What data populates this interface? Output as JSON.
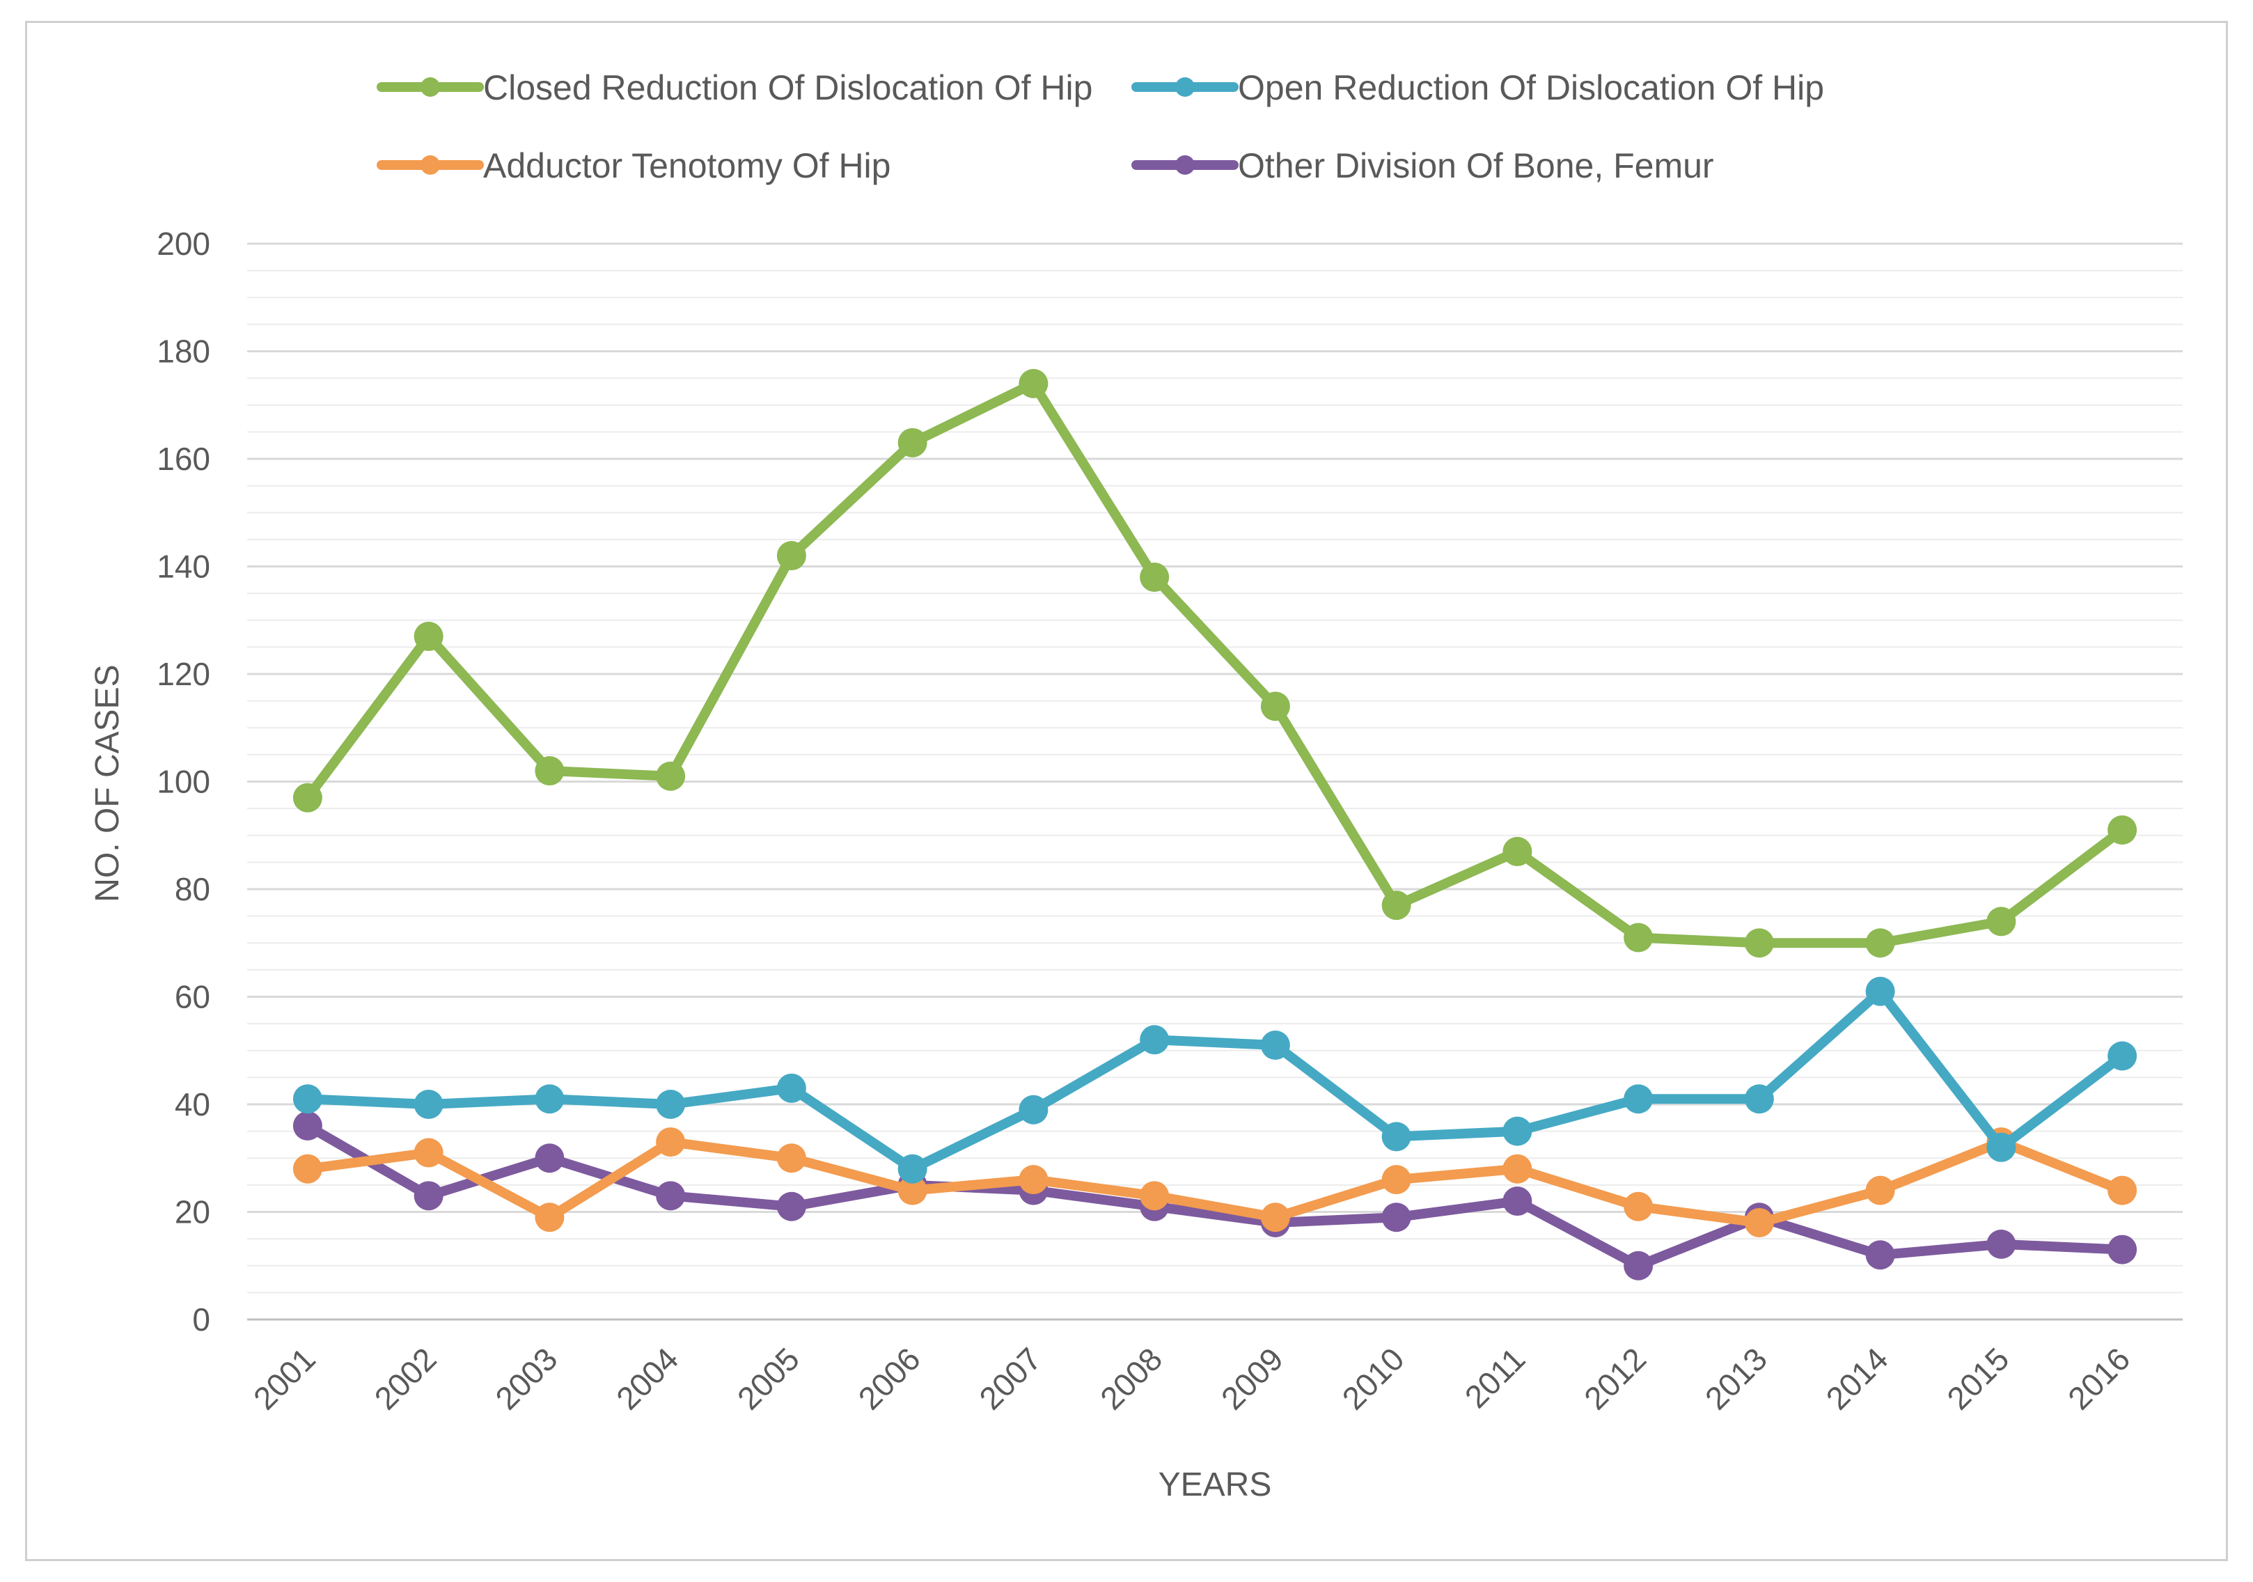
{
  "chart_data": {
    "type": "line",
    "title": "",
    "xlabel": "YEARS",
    "ylabel": "NO. OF CASES",
    "ylim": [
      0,
      200
    ],
    "ytick_step": 20,
    "minor_gridline_step": 5,
    "grid": true,
    "legend_position": "top",
    "categories": [
      "2001",
      "2002",
      "2003",
      "2004",
      "2005",
      "2006",
      "2007",
      "2008",
      "2009",
      "2010",
      "2011",
      "2012",
      "2013",
      "2014",
      "2015",
      "2016"
    ],
    "series": [
      {
        "name": "Closed Reduction Of Dislocation Of Hip",
        "color": "#8DB852",
        "values": [
          97,
          127,
          102,
          101,
          142,
          163,
          174,
          138,
          114,
          77,
          87,
          71,
          70,
          70,
          74,
          91
        ]
      },
      {
        "name": "Open Reduction Of Dislocation Of Hip",
        "color": "#45A9C4",
        "values": [
          41,
          40,
          41,
          40,
          43,
          28,
          39,
          52,
          51,
          34,
          35,
          41,
          41,
          61,
          32,
          49
        ]
      },
      {
        "name": "Adductor Tenotomy Of Hip",
        "color": "#F39B4E",
        "values": [
          28,
          31,
          19,
          33,
          30,
          24,
          26,
          23,
          19,
          26,
          28,
          21,
          18,
          24,
          33,
          24
        ]
      },
      {
        "name": "Other Division Of Bone, Femur",
        "color": "#7D5A9E",
        "values": [
          36,
          23,
          30,
          23,
          21,
          25,
          24,
          21,
          18,
          19,
          22,
          10,
          19,
          12,
          14,
          13
        ]
      }
    ]
  }
}
